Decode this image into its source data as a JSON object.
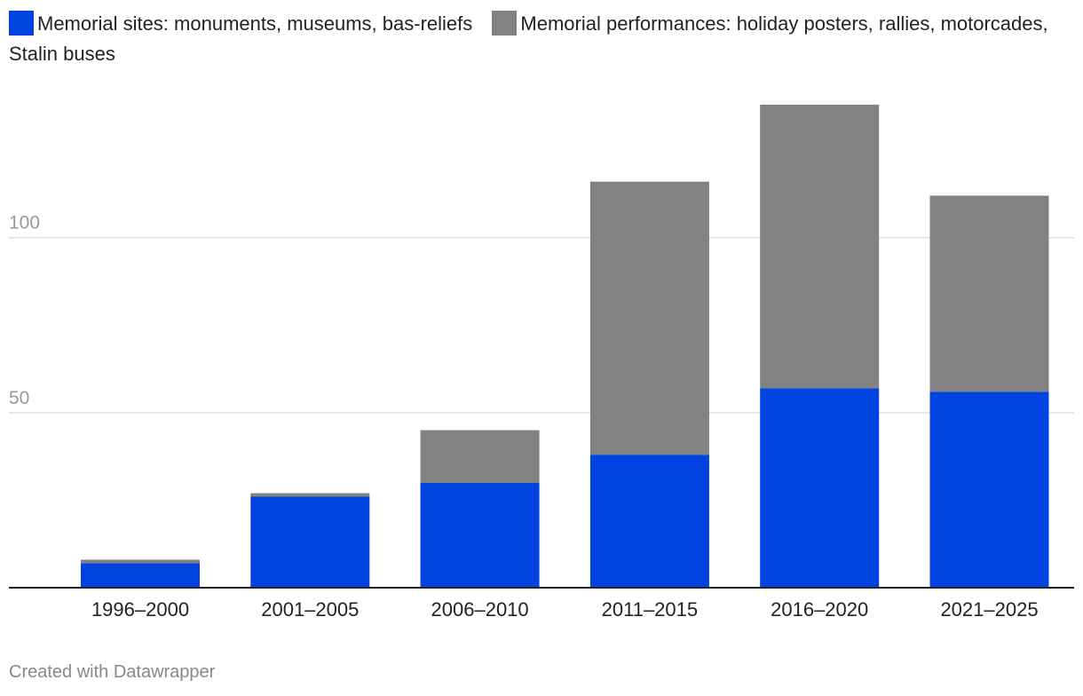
{
  "legend": [
    {
      "label": "Memorial sites: monuments, museums, bas-reliefs",
      "color": "#0043e0"
    },
    {
      "label": "Memorial performances: holiday posters, rallies, motorcades, Stalin buses",
      "color": "#828282"
    }
  ],
  "chart_data": {
    "type": "bar",
    "stacked": true,
    "categories": [
      "1996–2000",
      "2001–2005",
      "2006–2010",
      "2011–2015",
      "2016–2020",
      "2021–2025"
    ],
    "series": [
      {
        "name": "Memorial sites: monuments, museums, bas-reliefs",
        "color": "#0043e0",
        "values": [
          7,
          26,
          30,
          38,
          57,
          56
        ]
      },
      {
        "name": "Memorial performances: holiday posters, rallies, motorcades, Stalin buses",
        "color": "#828282",
        "values": [
          1,
          1,
          15,
          78,
          81,
          56
        ]
      }
    ],
    "ylim": [
      0,
      140
    ],
    "yticks": [
      50,
      100
    ],
    "grid": true,
    "legend_position": "top-left"
  },
  "footer": {
    "credit": "Created with Datawrapper"
  }
}
